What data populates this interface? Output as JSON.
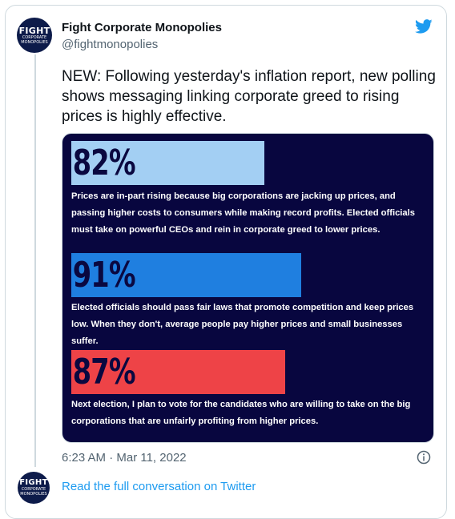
{
  "author": {
    "name": "Fight Corporate Monopolies",
    "handle": "@fightmonopolies",
    "avatar_line1": "FIGHT",
    "avatar_line2": "CORPORATE",
    "avatar_line3": "MONOPOLIES"
  },
  "tweet": {
    "text": "NEW: Following yesterday's inflation report, new polling shows messaging linking corporate greed to rising prices is highly effective.",
    "timestamp": "6:23 AM · Mar 11, 2022"
  },
  "media": {
    "background_color": "#08063f",
    "stats": [
      {
        "percent_label": "82%",
        "value": 82,
        "color": "#a3cff3",
        "statement": "Prices are in-part rising because big corporations are jacking up prices, and passing higher costs to consumers while making record profits. Elected officials must take on powerful CEOs and rein in corporate greed to lower prices."
      },
      {
        "percent_label": "91%",
        "value": 91,
        "color": "#1f7fe0",
        "statement": "Elected officials should pass fair laws that promote competition and keep prices low. When they don't, average people pay higher prices and small businesses suffer."
      },
      {
        "percent_label": "87%",
        "value": 87,
        "color": "#ee4347",
        "statement": "Next election, I plan to vote for the candidates who are willing to take on the big corporations that are unfairly profiting from higher prices."
      }
    ]
  },
  "footer": {
    "link_text": "Read the full conversation on Twitter"
  },
  "icons": {
    "brand": "twitter-bird-icon",
    "info": "info-icon"
  },
  "colors": {
    "link": "#1d9bf0",
    "brand": "#1d9bf0"
  }
}
